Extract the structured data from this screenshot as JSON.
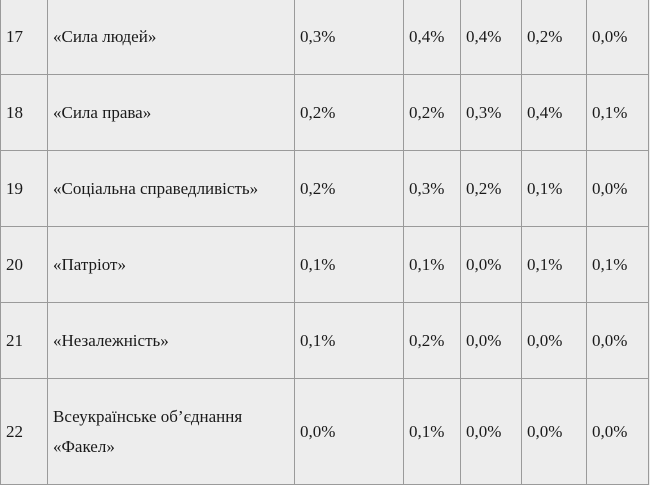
{
  "rows": [
    {
      "num": "17",
      "party": "«Сила людей»",
      "values": [
        "0,3%",
        "0,4%",
        "0,4%",
        "0,2%",
        "0,0%"
      ]
    },
    {
      "num": "18",
      "party": "«Сила права»",
      "values": [
        "0,2%",
        "0,2%",
        "0,3%",
        "0,4%",
        "0,1%"
      ]
    },
    {
      "num": "19",
      "party": "«Соціальна справедливість»",
      "values": [
        "0,2%",
        "0,3%",
        "0,2%",
        "0,1%",
        "0,0%"
      ]
    },
    {
      "num": "20",
      "party": "«Патріот»",
      "values": [
        "0,1%",
        "0,1%",
        "0,0%",
        "0,1%",
        "0,1%"
      ]
    },
    {
      "num": "21",
      "party": "«Незалежність»",
      "values": [
        "0,1%",
        "0,2%",
        "0,0%",
        "0,0%",
        "0,0%"
      ]
    },
    {
      "num": "22",
      "party": "Всеукраїнське об’єднання «Факел»",
      "values": [
        "0,0%",
        "0,1%",
        "0,0%",
        "0,0%",
        "0,0%"
      ]
    }
  ]
}
